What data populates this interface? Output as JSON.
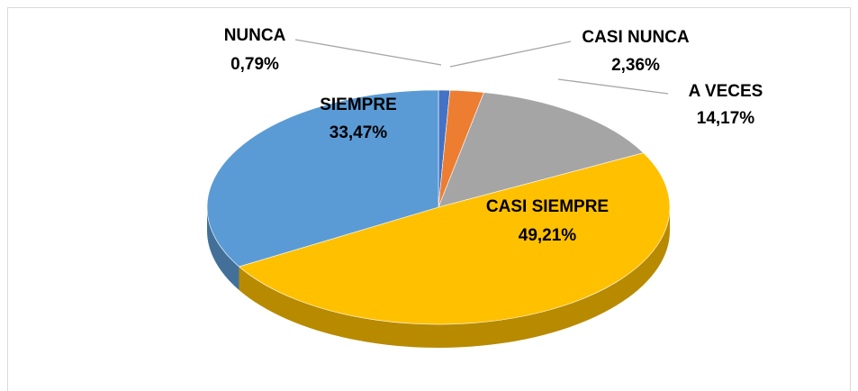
{
  "chart_data": {
    "type": "pie",
    "categories": [
      "NUNCA",
      "CASI NUNCA",
      "A VECES",
      "CASI SIEMPRE",
      "SIEMPRE"
    ],
    "values": [
      0.79,
      2.36,
      14.17,
      49.21,
      33.47
    ],
    "value_labels": [
      "0,79%",
      "2,36%",
      "14,17%",
      "49,21%",
      "33,47%"
    ],
    "colors": [
      "#4472c4",
      "#ed7d31",
      "#a5a5a5",
      "#ffc000",
      "#5b9bd5"
    ]
  }
}
